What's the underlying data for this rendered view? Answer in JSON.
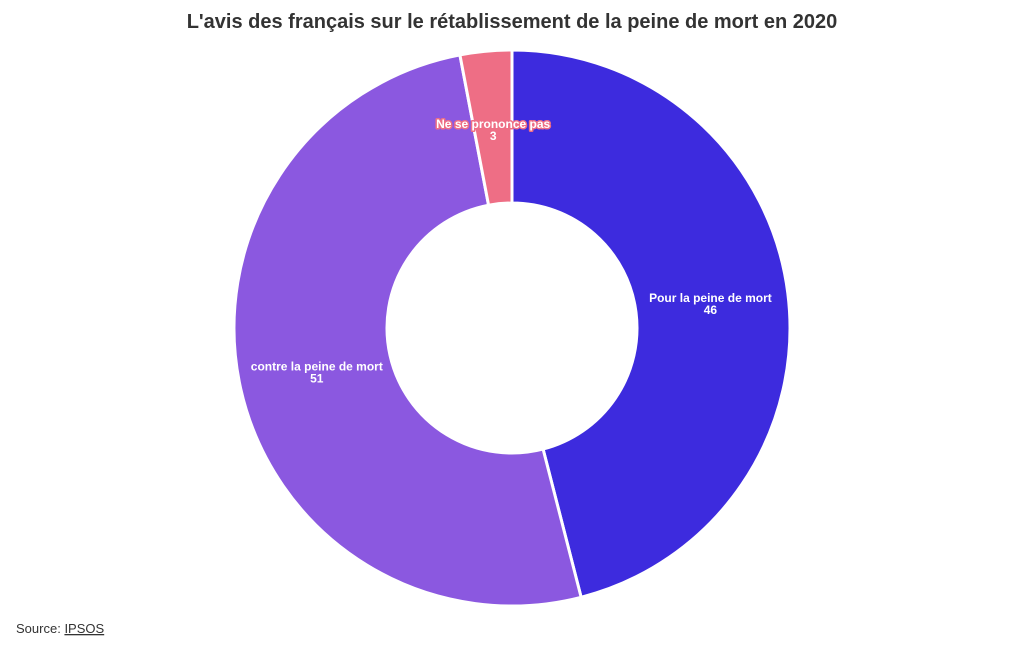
{
  "chart_data": {
    "type": "donut",
    "title": "L'avis des français sur le rétablissement de la peine de mort en 2020",
    "categories": [
      "Pour la peine de mort",
      "contre la peine de mort",
      "Ne se prononce pas"
    ],
    "values": [
      46,
      51,
      3
    ],
    "colors": [
      "#3d2bde",
      "#8b58e0",
      "#ee6e85"
    ],
    "source_label": "Source:",
    "source": "IPSOS"
  }
}
